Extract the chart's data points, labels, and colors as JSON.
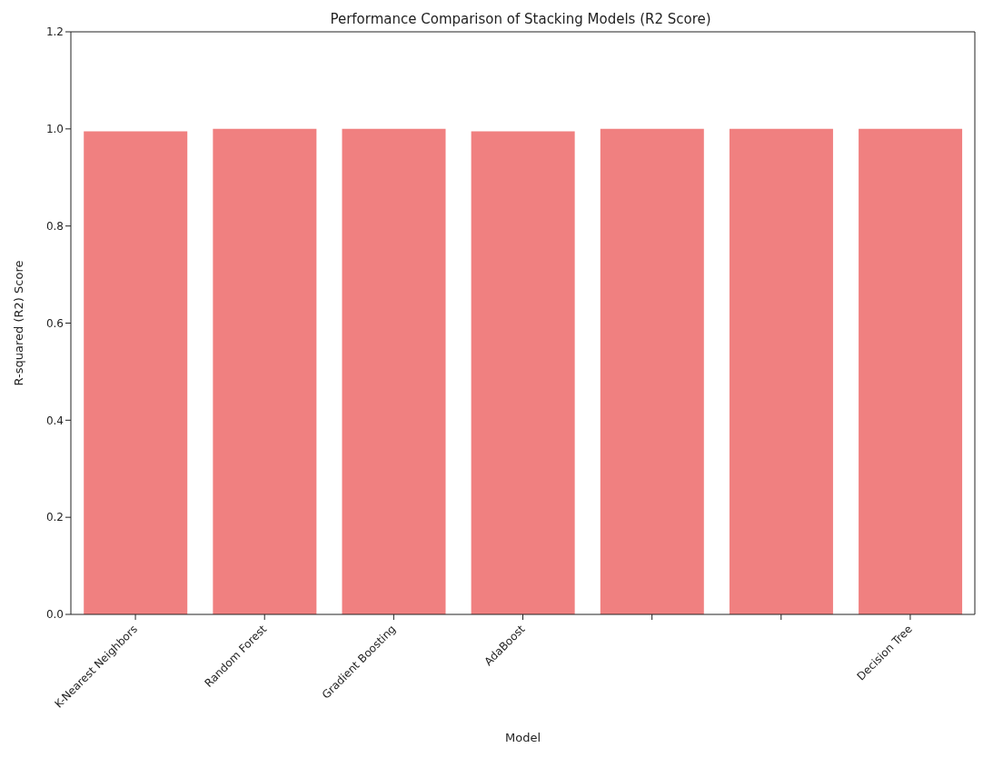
{
  "chart_data": {
    "type": "bar",
    "title": "Performance Comparison of Stacking Models (R2 Score)",
    "xlabel": "Model",
    "ylabel": "R-squared (R2) Score",
    "categories": [
      "K-Nearest Neighbors",
      "Random Forest",
      "Gradient Boosting",
      "AdaBoost",
      null,
      null,
      "Decision Tree"
    ],
    "values": [
      0.995,
      1.0,
      1.0,
      0.995,
      1.0,
      1.0,
      1.0
    ],
    "color": "#f08080",
    "ylim": [
      0,
      1.2
    ],
    "yticks": [
      {
        "value": 0,
        "label": "0.0"
      },
      0.2,
      0.4,
      0.6,
      0.8,
      {
        "value": 1,
        "label": "1.0"
      },
      1.2
    ],
    "grid": false
  }
}
